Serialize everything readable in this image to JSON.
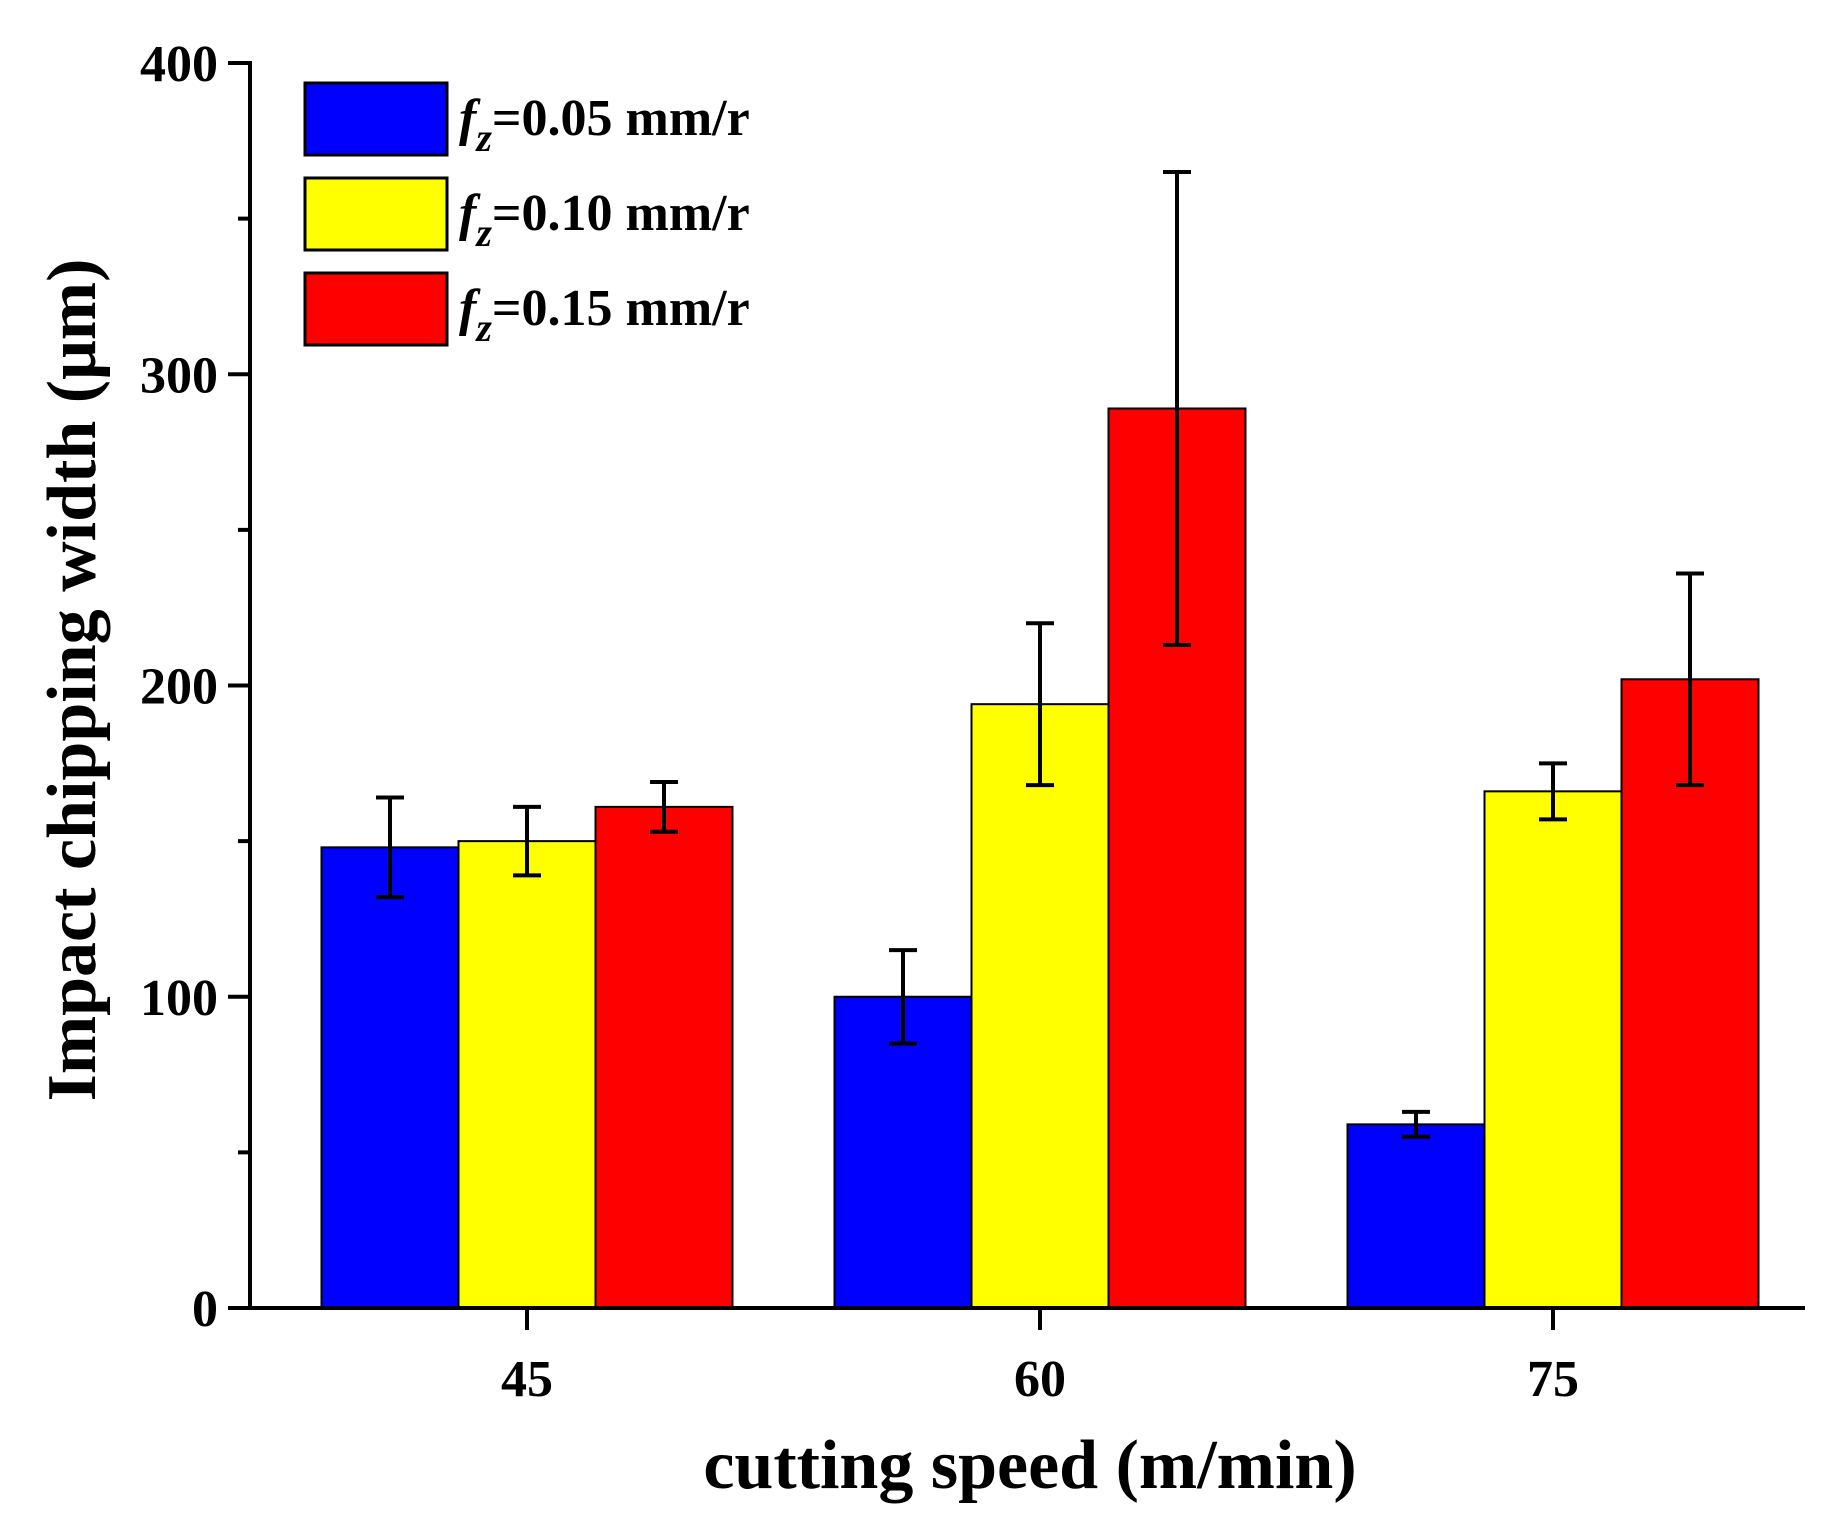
{
  "chart_data": {
    "type": "bar",
    "xlabel": "cutting speed (m/min)",
    "ylabel": "Impact chipping width (μm)",
    "categories": [
      "45",
      "60",
      "75"
    ],
    "ylim": [
      0,
      400
    ],
    "yticks": [
      "0",
      "100",
      "200",
      "300",
      "400"
    ],
    "yminor_step": 50,
    "grid": false,
    "legend_position": "top-left",
    "series": [
      {
        "name_var": "f",
        "name_sub": "z",
        "name_rest": "=0.05 mm/r",
        "color": "#0000ff",
        "values": [
          148,
          100,
          59
        ],
        "errors": [
          16,
          15,
          4
        ]
      },
      {
        "name_var": "f",
        "name_sub": "z",
        "name_rest": "=0.10 mm/r",
        "color": "#ffff00",
        "values": [
          150,
          194,
          166
        ],
        "errors": [
          11,
          26,
          9
        ]
      },
      {
        "name_var": "f",
        "name_sub": "z",
        "name_rest": "=0.15 mm/r",
        "color": "#ff0000",
        "values": [
          161,
          289,
          202
        ],
        "errors": [
          8,
          76,
          34
        ]
      }
    ]
  }
}
